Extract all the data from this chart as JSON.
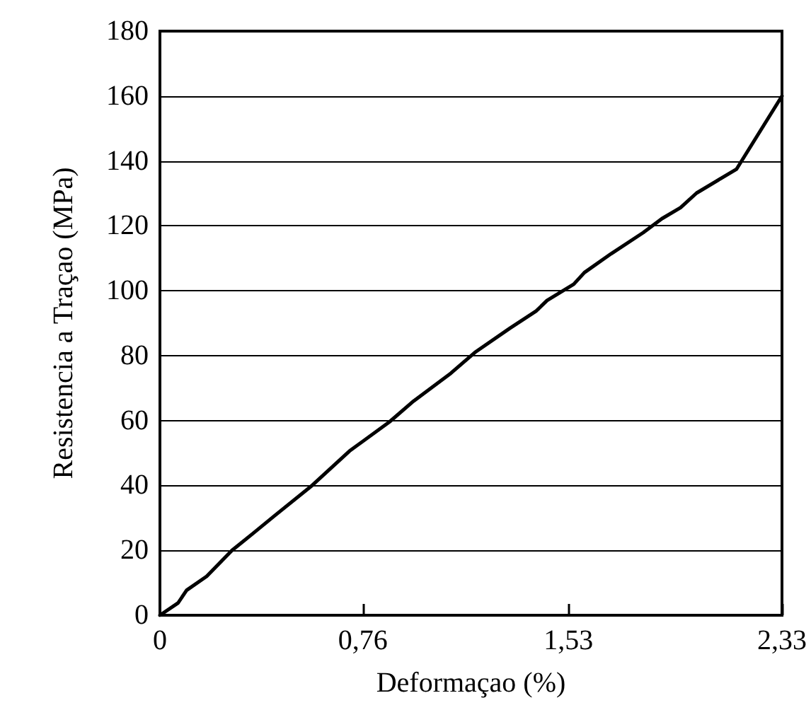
{
  "chart_data": {
    "type": "line",
    "xlabel": "Deformaçao (%)",
    "ylabel": "Resistencia a Traçao (MPa)",
    "x": [
      0,
      0.068,
      0.1,
      0.175,
      0.27,
      0.35,
      0.43,
      0.57,
      0.71,
      0.86,
      0.95,
      1.09,
      1.18,
      1.31,
      1.41,
      1.45,
      1.55,
      1.59,
      1.69,
      1.81,
      1.88,
      1.95,
      2.01,
      2.16,
      2.33
    ],
    "series": [
      {
        "color": "#000000",
        "values": [
          0,
          3.8,
          7.7,
          12,
          20,
          25.3,
          30.7,
          40,
          50.6,
          59.6,
          66,
          74.6,
          81,
          88.4,
          93.8,
          97,
          102,
          105.6,
          111.4,
          117.9,
          122.2,
          125.6,
          130.1,
          137.5,
          160
        ]
      }
    ],
    "xlim": [
      0,
      2.33
    ],
    "xticks": [
      0,
      {
        "value": 0.76,
        "label": "0,76"
      },
      {
        "value": 1.53,
        "label": "1,53"
      },
      {
        "value": 2.33,
        "label": "2,33"
      }
    ],
    "ylim": [
      0,
      180
    ],
    "yticks": [
      0,
      20,
      40,
      60,
      80,
      100,
      120,
      140,
      160,
      180
    ],
    "grid": "y",
    "marker": "none",
    "line_style": "solid"
  }
}
